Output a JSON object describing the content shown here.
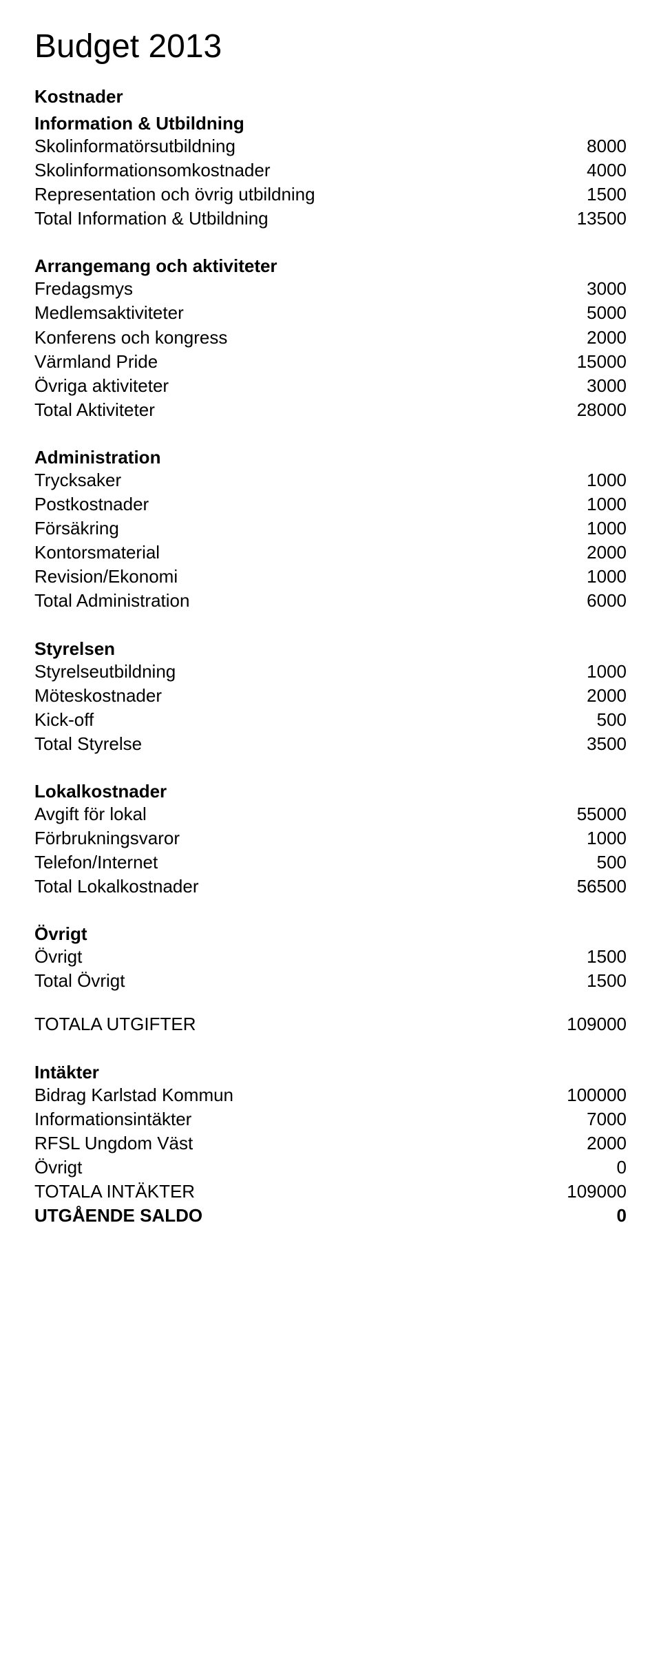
{
  "title": "Budget 2013",
  "sections": [
    {
      "header": "Kostnader",
      "subheader": "Information & Utbildning",
      "rows": [
        {
          "label": "Skolinformatörsutbildning",
          "value": "8000"
        },
        {
          "label": "Skolinformationsomkostnader",
          "value": "4000"
        },
        {
          "label": "Representation och övrig utbildning",
          "value": "1500"
        },
        {
          "label": "Total Information & Utbildning",
          "value": "13500"
        }
      ]
    },
    {
      "subheader": "Arrangemang och aktiviteter",
      "rows": [
        {
          "label": "Fredagsmys",
          "value": "3000"
        },
        {
          "label": "Medlemsaktiviteter",
          "value": "5000"
        },
        {
          "label": "Konferens och kongress",
          "value": "2000"
        },
        {
          "label": "Värmland Pride",
          "value": "15000"
        },
        {
          "label": "Övriga aktiviteter",
          "value": "3000"
        },
        {
          "label": "Total Aktiviteter",
          "value": "28000"
        }
      ]
    },
    {
      "subheader": "Administration",
      "rows": [
        {
          "label": "Trycksaker",
          "value": "1000"
        },
        {
          "label": "Postkostnader",
          "value": "1000"
        },
        {
          "label": "Försäkring",
          "value": "1000"
        },
        {
          "label": "Kontorsmaterial",
          "value": "2000"
        },
        {
          "label": "Revision/Ekonomi",
          "value": "1000"
        },
        {
          "label": "Total Administration",
          "value": "6000"
        }
      ]
    },
    {
      "subheader": "Styrelsen",
      "rows": [
        {
          "label": "Styrelseutbildning",
          "value": "1000"
        },
        {
          "label": "Möteskostnader",
          "value": "2000"
        },
        {
          "label": "Kick-off",
          "value": "500"
        },
        {
          "label": "Total Styrelse",
          "value": "3500"
        }
      ]
    },
    {
      "subheader": "Lokalkostnader",
      "rows": [
        {
          "label": "Avgift för lokal",
          "value": "55000"
        },
        {
          "label": "Förbrukningsvaror",
          "value": "1000"
        },
        {
          "label": "Telefon/Internet",
          "value": "500"
        },
        {
          "label": "Total Lokalkostnader",
          "value": "56500"
        }
      ]
    },
    {
      "subheader": "Övrigt",
      "rows": [
        {
          "label": "Övrigt",
          "value": "1500"
        },
        {
          "label": "Total Övrigt",
          "value": "1500"
        }
      ]
    }
  ],
  "totals_row": {
    "label": "TOTALA UTGIFTER",
    "value": "109000"
  },
  "income": {
    "header": "Intäkter",
    "rows": [
      {
        "label": "Bidrag Karlstad Kommun",
        "value": "100000"
      },
      {
        "label": "Informationsintäkter",
        "value": "7000"
      },
      {
        "label": "RFSL Ungdom Väst",
        "value": "2000"
      },
      {
        "label": "Övrigt",
        "value": "0"
      },
      {
        "label": "TOTALA INTÄKTER",
        "value": "109000"
      }
    ]
  },
  "balance": {
    "label": "UTGÅENDE SALDO",
    "value": "0",
    "bold": true
  }
}
